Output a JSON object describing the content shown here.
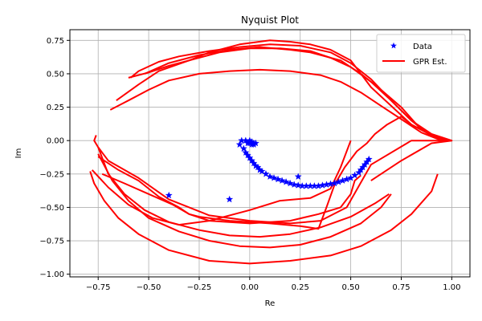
{
  "chart_data": {
    "type": "scatter",
    "title": "Nyquist Plot",
    "xlabel": "Re",
    "ylabel": "Im",
    "xlim": [
      -0.89,
      1.09
    ],
    "ylim": [
      -1.02,
      0.83
    ],
    "xticks": [
      -0.75,
      -0.5,
      -0.25,
      0.0,
      0.25,
      0.5,
      0.75,
      1.0
    ],
    "xtick_labels": [
      "−0.75",
      "−0.50",
      "−0.25",
      "0.00",
      "0.25",
      "0.50",
      "0.75",
      "1.00"
    ],
    "yticks": [
      0.75,
      0.5,
      0.25,
      0.0,
      -0.25,
      -0.5,
      -0.75,
      -1.0
    ],
    "ytick_labels": [
      "0.75",
      "0.50",
      "0.25",
      "0.00",
      "−0.25",
      "−0.50",
      "−0.75",
      "−1.00"
    ],
    "grid": true,
    "legend_position": "top-right",
    "series": [
      {
        "name": "Data",
        "kind": "markers",
        "marker": "star",
        "color": "#0000ff",
        "x": [
          -0.4,
          -0.1,
          0.24,
          0.59,
          0.58,
          0.57,
          0.56,
          0.55,
          0.54,
          0.52,
          0.5,
          0.48,
          0.46,
          0.44,
          0.42,
          0.4,
          0.38,
          0.36,
          0.34,
          0.32,
          0.3,
          0.28,
          0.26,
          0.24,
          0.22,
          0.2,
          0.18,
          0.16,
          0.14,
          0.12,
          0.1,
          0.08,
          0.06,
          0.05,
          0.04,
          0.03,
          0.02,
          0.01,
          0.0,
          -0.01,
          -0.02,
          -0.03,
          -0.05,
          -0.04,
          -0.02,
          0.0,
          0.01,
          0.02,
          0.03,
          0.02,
          0.01,
          0.0,
          -0.01
        ],
        "y": [
          -0.41,
          -0.44,
          -0.27,
          -0.14,
          -0.16,
          -0.18,
          -0.2,
          -0.22,
          -0.24,
          -0.26,
          -0.28,
          -0.29,
          -0.3,
          -0.31,
          -0.32,
          -0.325,
          -0.33,
          -0.335,
          -0.34,
          -0.34,
          -0.34,
          -0.34,
          -0.34,
          -0.335,
          -0.33,
          -0.32,
          -0.31,
          -0.3,
          -0.29,
          -0.28,
          -0.27,
          -0.25,
          -0.23,
          -0.22,
          -0.2,
          -0.19,
          -0.17,
          -0.15,
          -0.13,
          -0.11,
          -0.09,
          -0.06,
          -0.03,
          0.0,
          0.0,
          0.0,
          -0.01,
          -0.02,
          -0.02,
          -0.03,
          -0.03,
          -0.02,
          -0.02
        ]
      },
      {
        "name": "GPR Est.",
        "kind": "line",
        "color": "#ff0000",
        "segments": [
          {
            "x": [
              -0.59,
              -0.55,
              -0.45,
              -0.35,
              -0.2,
              -0.05,
              0.1,
              0.25,
              0.4,
              0.5,
              0.6,
              0.7,
              0.8,
              0.9,
              1.0
            ],
            "y": [
              0.47,
              0.52,
              0.59,
              0.63,
              0.67,
              0.7,
              0.72,
              0.71,
              0.66,
              0.58,
              0.46,
              0.3,
              0.15,
              0.05,
              0.0
            ]
          },
          {
            "x": [
              -0.6,
              -0.5,
              -0.4,
              -0.3,
              -0.2,
              -0.05,
              0.1,
              0.2,
              0.3,
              0.4,
              0.5,
              0.55,
              0.6,
              0.7,
              0.8,
              0.9,
              0.97
            ],
            "y": [
              0.47,
              0.51,
              0.56,
              0.6,
              0.66,
              0.72,
              0.75,
              0.74,
              0.72,
              0.68,
              0.6,
              0.5,
              0.4,
              0.26,
              0.12,
              0.04,
              0.0
            ]
          },
          {
            "x": [
              -0.69,
              -0.6,
              -0.5,
              -0.4,
              -0.25,
              -0.1,
              0.05,
              0.2,
              0.35,
              0.45,
              0.55,
              0.65,
              0.75,
              0.85,
              0.95
            ],
            "y": [
              0.23,
              0.3,
              0.38,
              0.45,
              0.5,
              0.52,
              0.53,
              0.52,
              0.49,
              0.44,
              0.36,
              0.26,
              0.16,
              0.06,
              0.0
            ]
          },
          {
            "x": [
              -0.66,
              -0.55,
              -0.45,
              -0.3,
              -0.15,
              0.0,
              0.15,
              0.3,
              0.4,
              0.5,
              0.6,
              0.7,
              0.8,
              0.9
            ],
            "y": [
              0.3,
              0.42,
              0.52,
              0.6,
              0.66,
              0.69,
              0.69,
              0.67,
              0.62,
              0.55,
              0.44,
              0.3,
              0.15,
              0.03
            ]
          },
          {
            "x": [
              -0.52,
              -0.4,
              -0.25,
              -0.1,
              0.05,
              0.2,
              0.3,
              0.45,
              0.55,
              0.65,
              0.75,
              0.85
            ],
            "y": [
              0.5,
              0.58,
              0.64,
              0.68,
              0.7,
              0.68,
              0.66,
              0.6,
              0.5,
              0.38,
              0.25,
              0.08
            ]
          },
          {
            "x": [
              0.6,
              0.75,
              0.9,
              1.0,
              0.8,
              0.6,
              0.48,
              0.35,
              0.2,
              0.0,
              -0.2,
              -0.4,
              -0.55,
              -0.7,
              -0.75,
              -0.77,
              -0.76
            ],
            "y": [
              -0.3,
              -0.15,
              -0.02,
              0.0,
              0.0,
              -0.18,
              -0.5,
              -0.6,
              -0.62,
              -0.6,
              -0.56,
              -0.44,
              -0.28,
              -0.15,
              -0.05,
              0.0,
              0.04
            ]
          },
          {
            "x": [
              0.93,
              0.9,
              0.8,
              0.7,
              0.55,
              0.4,
              0.2,
              0.0,
              -0.2,
              -0.4,
              -0.55,
              -0.65,
              -0.72,
              -0.77,
              -0.79
            ],
            "y": [
              -0.25,
              -0.38,
              -0.55,
              -0.67,
              -0.79,
              -0.86,
              -0.9,
              -0.92,
              -0.9,
              -0.82,
              -0.7,
              -0.58,
              -0.45,
              -0.32,
              -0.23
            ]
          },
          {
            "x": [
              0.7,
              0.65,
              0.55,
              0.4,
              0.25,
              0.1,
              -0.05,
              -0.2,
              -0.35,
              -0.5,
              -0.6,
              -0.68,
              -0.75
            ],
            "y": [
              -0.4,
              -0.5,
              -0.62,
              -0.72,
              -0.78,
              -0.8,
              -0.79,
              -0.75,
              -0.68,
              -0.58,
              -0.45,
              -0.3,
              -0.1
            ]
          },
          {
            "x": [
              0.69,
              0.62,
              0.5,
              0.35,
              0.2,
              0.05,
              -0.1,
              -0.25,
              -0.4,
              -0.52,
              -0.62,
              -0.7,
              -0.75
            ],
            "y": [
              -0.4,
              -0.47,
              -0.57,
              -0.65,
              -0.7,
              -0.72,
              -0.71,
              -0.67,
              -0.61,
              -0.52,
              -0.4,
              -0.25,
              -0.05
            ]
          },
          {
            "x": [
              -0.75,
              -0.65,
              -0.55,
              -0.45,
              -0.35,
              -0.3,
              -0.25,
              -0.1,
              0.1,
              0.25,
              0.34,
              0.38,
              0.42,
              0.47,
              0.53,
              0.58,
              0.62,
              0.68,
              0.75,
              0.8,
              0.85,
              0.9,
              0.98,
              1.0
            ],
            "y": [
              -0.12,
              -0.22,
              -0.3,
              -0.42,
              -0.5,
              -0.55,
              -0.57,
              -0.6,
              -0.62,
              -0.64,
              -0.66,
              -0.5,
              -0.33,
              -0.2,
              -0.08,
              -0.02,
              0.05,
              0.12,
              0.18,
              0.12,
              0.08,
              0.04,
              0.0,
              0.0
            ]
          },
          {
            "x": [
              -0.73,
              -0.62,
              -0.5,
              -0.38,
              -0.3,
              -0.2,
              0.0,
              0.2,
              0.34,
              0.45,
              0.5,
              0.52,
              0.55
            ],
            "y": [
              -0.25,
              -0.32,
              -0.4,
              -0.48,
              -0.55,
              -0.6,
              -0.62,
              -0.6,
              -0.55,
              -0.5,
              -0.4,
              -0.3,
              -0.26
            ]
          },
          {
            "x": [
              -0.78,
              -0.7,
              -0.6,
              -0.48,
              -0.35,
              -0.2,
              0.0,
              0.15,
              0.3,
              0.4,
              0.45,
              0.5
            ],
            "y": [
              -0.22,
              -0.35,
              -0.48,
              -0.58,
              -0.63,
              -0.6,
              -0.52,
              -0.45,
              -0.43,
              -0.36,
              -0.2,
              0.0
            ]
          }
        ]
      }
    ]
  }
}
